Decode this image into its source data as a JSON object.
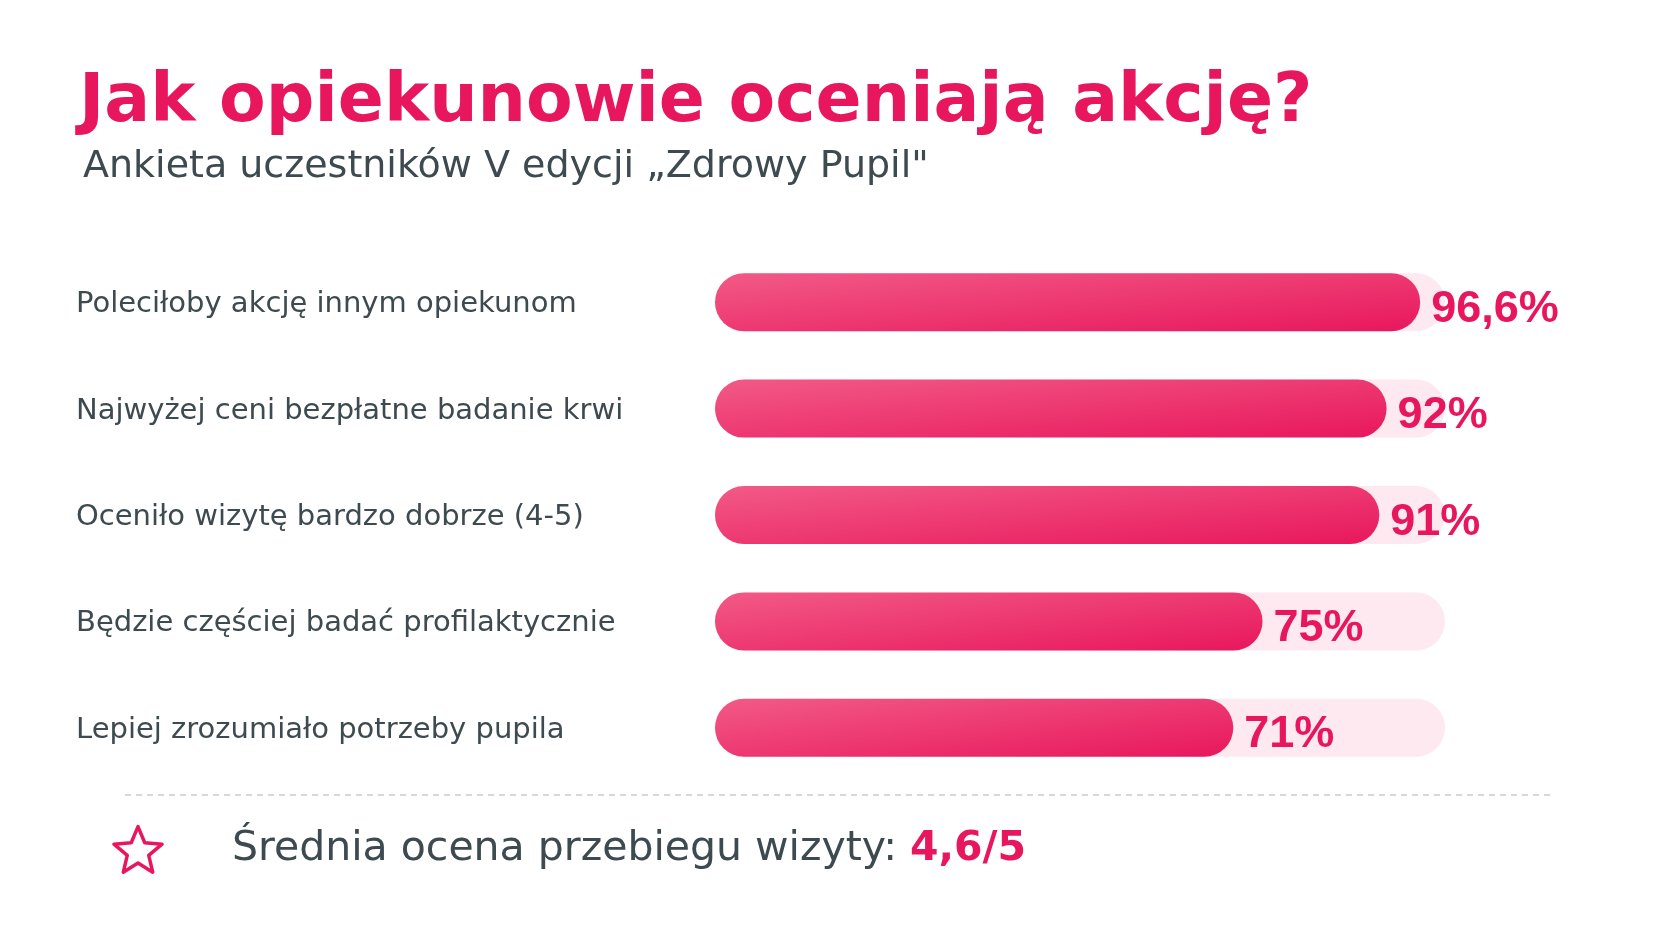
{
  "chart_data": {
    "type": "bar",
    "orientation": "horizontal",
    "title": "Jak opiekunowie oceniają akcję?",
    "subtitle": "Ankieta uczestników V edycji „Zdrowy Pupil\"",
    "categories": [
      "Poleciłoby akcję innym opiekunom",
      "Najwyżej ceni bezpłatne badanie krwi",
      "Oceniło wizytę bardzo dobrze (4-5)",
      "Będzie częściej badać profilaktycznie",
      "Lepiej zrozumiało potrzeby pupila"
    ],
    "values": [
      96.6,
      92,
      91,
      75,
      71
    ],
    "value_labels": [
      "96,6%",
      "92%",
      "91%",
      "75%",
      "71%"
    ],
    "color": "#e8175d",
    "xlim": [
      0,
      100
    ],
    "tick_labels": "y",
    "annotations": [
      "Średnia ocena przebiegu wizyty: 4,6/5"
    ]
  }
}
